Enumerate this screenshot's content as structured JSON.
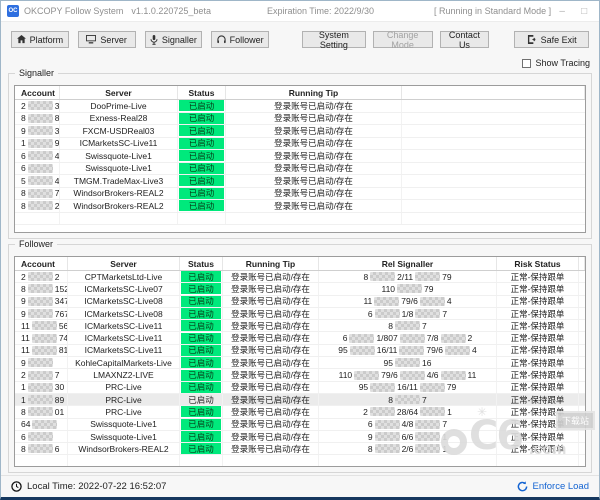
{
  "window": {
    "app_icon": "OC",
    "app_title": "OKCOPY Follow System",
    "version": "v1.1.0.220725_beta",
    "expiration": "Expiration Time: 2022/9/30",
    "mode": "[ Running in Standard Mode ]",
    "minimize": "–",
    "maximize": "□",
    "close": "×"
  },
  "toolbar": {
    "buttons": [
      {
        "label": "Platform",
        "icon": "home-icon"
      },
      {
        "label": "Server",
        "icon": "monitor-icon"
      },
      {
        "label": "Signaller",
        "icon": "microphone-icon"
      },
      {
        "label": "Follower",
        "icon": "headphones-icon"
      },
      {
        "label": "System Setting"
      },
      {
        "label": "Change Mode",
        "disabled": true
      },
      {
        "label": "Contact Us"
      },
      {
        "label": "Safe Exit",
        "icon": "exit-icon"
      }
    ]
  },
  "show_tracing_label": "Show Tracing",
  "colors": {
    "status_green": "#00e97c",
    "accent_blue": "#1464d2",
    "window_border_bottom": "#16375e"
  },
  "signaller": {
    "label": "Signaller",
    "headers": [
      "Account",
      "Server",
      "Status",
      "Running Tip"
    ],
    "empty_rows": 1,
    "rows": [
      {
        "account": "2##3",
        "server": "DooPrime-Live",
        "status": "已启动",
        "tip": "登录账号已启动/存在"
      },
      {
        "account": "8##82",
        "server": "Exness-Real28",
        "status": "已启动",
        "tip": "登录账号已启动/存在"
      },
      {
        "account": "9##316",
        "server": "FXCM-USDReal03",
        "status": "已启动",
        "tip": "登录账号已启动/存在"
      },
      {
        "account": "1##9979",
        "server": "ICMarketsSC-Live11",
        "status": "已启动",
        "tip": "登录账号已启动/存在"
      },
      {
        "account": "6##4",
        "server": "Swissquote-Live1",
        "status": "已启动",
        "tip": "登录账号已启动/存在"
      },
      {
        "account": "6##",
        "server": "Swissquote-Live1",
        "status": "已启动",
        "tip": "登录账号已启动/存在"
      },
      {
        "account": "5##4",
        "server": "TMGM.TradeMax-Live3",
        "status": "已启动",
        "tip": "登录账号已启动/存在"
      },
      {
        "account": "8##7",
        "server": "WindsorBrokers-REAL2",
        "status": "已启动",
        "tip": "登录账号已启动/存在"
      },
      {
        "account": "8##2",
        "server": "WindsorBrokers-REAL2",
        "status": "已启动",
        "tip": "登录账号已启动/存在"
      }
    ]
  },
  "follower": {
    "label": "Follower",
    "headers": [
      "Account",
      "Server",
      "Status",
      "Running Tip",
      "Rel Signaller",
      "Risk Status"
    ],
    "empty_rows": 2,
    "rows": [
      {
        "account": "2##2",
        "server": "CPTMarketsLtd-Live",
        "status": "已启动",
        "tip": "登录账号已启动/存在",
        "rel": "8##2/11##79",
        "risk": "正常-保持跟单"
      },
      {
        "account": "8##152",
        "server": "ICMarketsSC-Live07",
        "status": "已启动",
        "tip": "登录账号已启动/存在",
        "rel": "110##79",
        "risk": "正常-保持跟单"
      },
      {
        "account": "9##347",
        "server": "ICMarketsSC-Live08",
        "status": "已启动",
        "tip": "登录账号已启动/存在",
        "rel": "11##79/6##4",
        "risk": "正常-保持跟单"
      },
      {
        "account": "9##767",
        "server": "ICMarketsSC-Live08",
        "status": "已启动",
        "tip": "登录账号已启动/存在",
        "rel": "6##1/8##7",
        "risk": "正常-保持跟单"
      },
      {
        "account": "11##56",
        "server": "ICMarketsSC-Live11",
        "status": "已启动",
        "tip": "登录账号已启动/存在",
        "rel": "8##7",
        "risk": "正常-保持跟单"
      },
      {
        "account": "11##745",
        "server": "ICMarketsSC-Live11",
        "status": "已启动",
        "tip": "登录账号已启动/存在",
        "rel": "6##1/807##7/8##2",
        "risk": "正常-保持跟单"
      },
      {
        "account": "11##817",
        "server": "ICMarketsSC-Live11",
        "status": "已启动",
        "tip": "登录账号已启动/存在",
        "rel": "95##16/11##79/6##4",
        "risk": "正常-保持跟单"
      },
      {
        "account": "9##",
        "server": "KohleCapitalMarkets-Live",
        "status": "已启动",
        "tip": "登录账号已启动/存在",
        "rel": "95##16",
        "risk": "正常-保持跟单"
      },
      {
        "account": "2##7",
        "server": "LMAXNZ2-LIVE",
        "status": "已启动",
        "tip": "登录账号已启动/存在",
        "rel": "110##79/6##4/6##11",
        "risk": "正常-保持跟单"
      },
      {
        "account": "1##30",
        "server": "PRC-Live",
        "status": "已启动",
        "tip": "登录账号已启动/存在",
        "rel": "95##16/11##79",
        "risk": "正常-保持跟单"
      },
      {
        "account": "1##89",
        "server": "PRC-Live",
        "status": "已启动",
        "tip": "登录账号已启动/存在",
        "rel": "8##7",
        "risk": "正常-保持跟单",
        "selected": true
      },
      {
        "account": "8##01",
        "server": "PRC-Live",
        "status": "已启动",
        "tip": "登录账号已启动/存在",
        "rel": "2##28/64##1",
        "risk": "正常-保持跟单"
      },
      {
        "account": "64##",
        "server": "Swissquote-Live1",
        "status": "已启动",
        "tip": "登录账号已启动/存在",
        "rel": "6##4/8##7",
        "risk": "正常-保持跟单"
      },
      {
        "account": "6##",
        "server": "Swissquote-Live1",
        "status": "已启动",
        "tip": "登录账号已启动/存在",
        "rel": "9##6/6##1",
        "risk": "正常-保持跟单"
      },
      {
        "account": "8##6",
        "server": "WindsorBrokers-REAL2",
        "status": "已启动",
        "tip": "登录账号已启动/存在",
        "rel": "8##2/6##1",
        "risk": "正常-保持跟单"
      }
    ]
  },
  "statusbar": {
    "local_time": "Local Time: 2022-07-22 16:52:07",
    "enforce_load": "Enforce Load"
  },
  "watermark": {
    "logo": "C6",
    "tld": ".com",
    "badge": "下载站"
  }
}
